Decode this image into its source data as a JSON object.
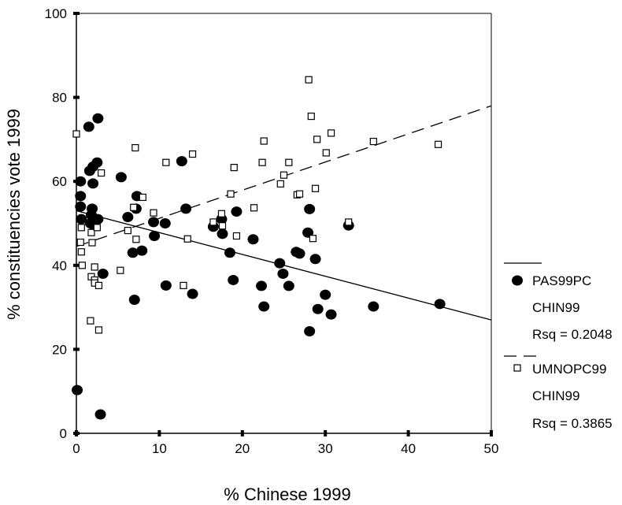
{
  "chart_data": {
    "type": "scatter",
    "xlabel": "% Chinese 1999",
    "ylabel": "% constituencies vote 1999",
    "xlim": [
      0,
      50
    ],
    "ylim": [
      0,
      100
    ],
    "xticks": [
      "0",
      "10",
      "20",
      "30",
      "40",
      "50"
    ],
    "yticks": [
      "0",
      "20",
      "40",
      "60",
      "80",
      "100"
    ],
    "grid": false,
    "legend_position": "right",
    "series": [
      {
        "name": "PAS99PC",
        "marker": "filled-circle",
        "color": "#000000",
        "fit_label": "CHIN99",
        "rsq_label": "Rsq = 0.2048",
        "fit_line": {
          "style": "solid",
          "intercept": 53.0,
          "slope": -0.52
        },
        "points": [
          [
            0.1,
            10.3
          ],
          [
            0.5,
            60.0
          ],
          [
            0.5,
            56.5
          ],
          [
            0.5,
            54.0
          ],
          [
            0.6,
            51.0
          ],
          [
            1.5,
            73.0
          ],
          [
            1.6,
            62.5
          ],
          [
            1.7,
            50.0
          ],
          [
            1.8,
            52.0
          ],
          [
            1.9,
            53.5
          ],
          [
            2.0,
            63.5
          ],
          [
            2.0,
            59.5
          ],
          [
            2.1,
            49.5
          ],
          [
            2.5,
            64.5
          ],
          [
            2.6,
            51.0
          ],
          [
            2.6,
            75.0
          ],
          [
            2.9,
            4.5
          ],
          [
            3.2,
            38.0
          ],
          [
            5.4,
            61.0
          ],
          [
            6.2,
            51.5
          ],
          [
            6.8,
            43.0
          ],
          [
            7.0,
            31.8
          ],
          [
            7.2,
            53.5
          ],
          [
            7.3,
            56.5
          ],
          [
            7.9,
            43.5
          ],
          [
            9.3,
            50.3
          ],
          [
            9.4,
            47.0
          ],
          [
            10.7,
            50.0
          ],
          [
            10.8,
            35.2
          ],
          [
            12.7,
            64.8
          ],
          [
            13.2,
            53.5
          ],
          [
            14.0,
            33.2
          ],
          [
            16.5,
            49.2
          ],
          [
            17.5,
            51.0
          ],
          [
            17.6,
            47.5
          ],
          [
            18.5,
            43.0
          ],
          [
            18.9,
            36.5
          ],
          [
            19.3,
            52.8
          ],
          [
            21.3,
            46.2
          ],
          [
            22.3,
            35.1
          ],
          [
            22.6,
            30.2
          ],
          [
            24.5,
            40.5
          ],
          [
            24.9,
            38.0
          ],
          [
            25.6,
            35.1
          ],
          [
            26.5,
            43.2
          ],
          [
            26.9,
            42.8
          ],
          [
            27.9,
            47.8
          ],
          [
            28.1,
            53.4
          ],
          [
            28.1,
            24.3
          ],
          [
            28.8,
            41.5
          ],
          [
            29.1,
            29.6
          ],
          [
            30.0,
            33.0
          ],
          [
            30.7,
            28.3
          ],
          [
            32.8,
            49.5
          ],
          [
            35.8,
            30.2
          ],
          [
            43.8,
            30.8
          ]
        ]
      },
      {
        "name": "UMNOPC99",
        "marker": "hollow-square",
        "color": "#000000",
        "fit_label": "CHIN99",
        "rsq_label": "Rsq = 0.3865",
        "fit_line": {
          "style": "dashed",
          "intercept": 44.5,
          "slope": 0.67
        },
        "points": [
          [
            0.0,
            71.3
          ],
          [
            0.5,
            45.5
          ],
          [
            0.6,
            49.0
          ],
          [
            0.6,
            43.2
          ],
          [
            0.7,
            40.0
          ],
          [
            1.7,
            26.8
          ],
          [
            1.8,
            37.3
          ],
          [
            1.8,
            47.8
          ],
          [
            1.9,
            45.4
          ],
          [
            2.2,
            36.5
          ],
          [
            2.2,
            39.6
          ],
          [
            2.2,
            35.8
          ],
          [
            2.5,
            49.0
          ],
          [
            2.7,
            24.6
          ],
          [
            2.7,
            35.2
          ],
          [
            3.0,
            62.0
          ],
          [
            5.3,
            38.8
          ],
          [
            6.2,
            48.3
          ],
          [
            6.9,
            53.8
          ],
          [
            7.1,
            68.0
          ],
          [
            7.2,
            46.2
          ],
          [
            8.0,
            56.2
          ],
          [
            9.3,
            52.5
          ],
          [
            10.8,
            64.5
          ],
          [
            12.9,
            35.2
          ],
          [
            13.4,
            46.3
          ],
          [
            14.0,
            66.5
          ],
          [
            16.5,
            50.3
          ],
          [
            17.5,
            52.3
          ],
          [
            17.6,
            49.4
          ],
          [
            18.6,
            57.0
          ],
          [
            19.0,
            63.3
          ],
          [
            19.3,
            47.0
          ],
          [
            21.4,
            53.7
          ],
          [
            22.4,
            64.5
          ],
          [
            22.6,
            69.6
          ],
          [
            24.6,
            59.4
          ],
          [
            25.0,
            61.5
          ],
          [
            25.6,
            64.5
          ],
          [
            26.6,
            56.8
          ],
          [
            26.9,
            57.0
          ],
          [
            28.0,
            84.2
          ],
          [
            28.3,
            75.5
          ],
          [
            28.5,
            46.4
          ],
          [
            28.8,
            58.3
          ],
          [
            29.0,
            70.0
          ],
          [
            30.1,
            66.8
          ],
          [
            30.7,
            71.5
          ],
          [
            32.8,
            50.3
          ],
          [
            35.8,
            69.5
          ],
          [
            43.6,
            68.8
          ]
        ]
      }
    ]
  }
}
